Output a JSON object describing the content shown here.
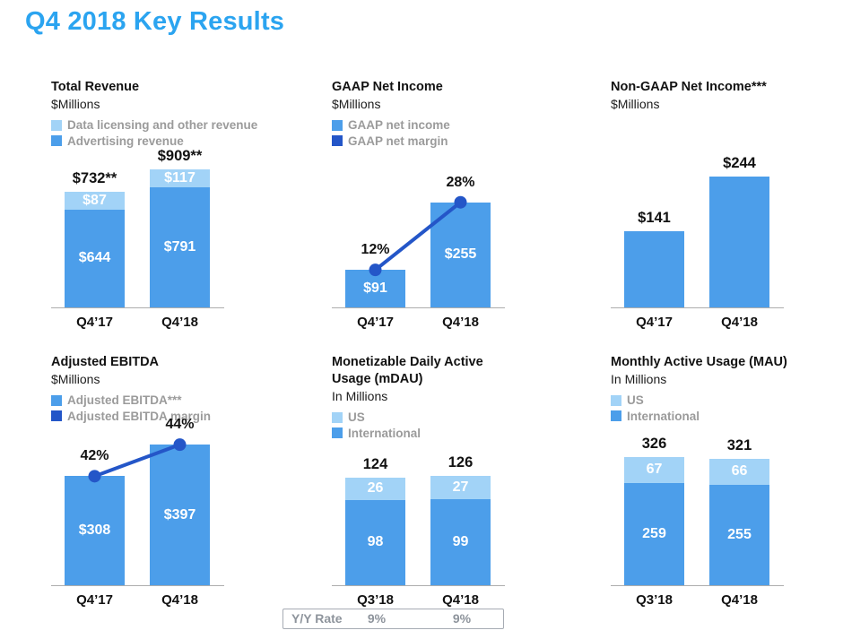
{
  "page_title": "Q4 2018 Key Results",
  "colors": {
    "title_blue": "#2BA4F0",
    "light_blue": "#A2D3F7",
    "medium_blue": "#4C9EEA",
    "dark_blue": "#2456C8",
    "legend_text_gray": "#9B9B9B",
    "axis_gray": "#ADADAD"
  },
  "chart_data": [
    {
      "type": "bar",
      "stacked": true,
      "title": "Total Revenue",
      "subtitle": "$Millions",
      "categories": [
        "Q4’17",
        "Q4’18"
      ],
      "legend_items": [
        {
          "label": "Data licensing and other revenue",
          "color": "light_blue"
        },
        {
          "label": "Advertising revenue",
          "color": "medium_blue"
        }
      ],
      "series": [
        {
          "name": "Data licensing and other revenue",
          "color": "light_blue",
          "values": [
            87,
            117
          ],
          "value_labels": [
            "$87",
            "$117"
          ]
        },
        {
          "name": "Advertising revenue",
          "color": "medium_blue",
          "values": [
            644,
            791
          ],
          "value_labels": [
            "$644",
            "$791"
          ]
        }
      ],
      "totals": [
        "$732**",
        "$909**"
      ],
      "ylim": [
        0,
        960
      ]
    },
    {
      "type": "bar-line",
      "title": "GAAP Net Income",
      "subtitle": "$Millions",
      "categories": [
        "Q4’17",
        "Q4’18"
      ],
      "legend_items": [
        {
          "label": "GAAP net income",
          "color": "medium_blue"
        },
        {
          "label": "GAAP net margin",
          "color": "dark_blue"
        }
      ],
      "series": [
        {
          "name": "GAAP net income",
          "color": "medium_blue",
          "values": [
            91,
            255
          ],
          "value_labels": [
            "$91",
            "$255"
          ]
        }
      ],
      "line": {
        "name": "GAAP net margin",
        "color": "dark_blue",
        "labels": [
          "12%",
          "28%"
        ]
      },
      "ylim": [
        0,
        290
      ]
    },
    {
      "type": "bar",
      "stacked": false,
      "title": "Non-GAAP Net Income***",
      "subtitle": "$Millions",
      "categories": [
        "Q4’17",
        "Q4’18"
      ],
      "series": [
        {
          "color": "medium_blue",
          "values": [
            141,
            244
          ]
        }
      ],
      "totals": [
        "$141",
        "$244"
      ],
      "ylim": [
        0,
        260
      ]
    },
    {
      "type": "bar-line",
      "title": "Adjusted EBITDA",
      "subtitle": "$Millions",
      "categories": [
        "Q4’17",
        "Q4’18"
      ],
      "legend_items": [
        {
          "label": "Adjusted EBITDA***",
          "color": "medium_blue"
        },
        {
          "label": "Adjusted EBITDA margin",
          "color": "dark_blue"
        }
      ],
      "series": [
        {
          "name": "Adjusted EBITDA***",
          "color": "medium_blue",
          "values": [
            308,
            397
          ],
          "value_labels": [
            "$308",
            "$397"
          ]
        }
      ],
      "line": {
        "name": "Adjusted EBITDA margin",
        "color": "dark_blue",
        "labels": [
          "42%",
          "44%"
        ]
      },
      "ylim": [
        0,
        420
      ]
    },
    {
      "type": "bar",
      "stacked": true,
      "title": "Monetizable Daily Active Usage (mDAU)",
      "subtitle": "In Millions",
      "categories": [
        "Q3’18",
        "Q4’18"
      ],
      "legend_items": [
        {
          "label": "US",
          "color": "light_blue"
        },
        {
          "label": "International",
          "color": "medium_blue"
        }
      ],
      "series": [
        {
          "name": "US",
          "color": "light_blue",
          "values": [
            26,
            27
          ],
          "value_labels": [
            "26",
            "27"
          ]
        },
        {
          "name": "International",
          "color": "medium_blue",
          "values": [
            98,
            99
          ],
          "value_labels": [
            "98",
            "99"
          ]
        }
      ],
      "totals": [
        "124",
        "126"
      ],
      "ylim": [
        0,
        130
      ]
    },
    {
      "type": "bar",
      "stacked": true,
      "title": "Monthly Active Usage (MAU)",
      "subtitle": "In Millions",
      "categories": [
        "Q3’18",
        "Q4’18"
      ],
      "legend_items": [
        {
          "label": "US",
          "color": "light_blue"
        },
        {
          "label": "International",
          "color": "medium_blue"
        }
      ],
      "series": [
        {
          "name": "US",
          "color": "light_blue",
          "values": [
            67,
            66
          ],
          "value_labels": [
            "67",
            "66"
          ]
        },
        {
          "name": "International",
          "color": "medium_blue",
          "values": [
            259,
            255
          ],
          "value_labels": [
            "259",
            "255"
          ]
        }
      ],
      "totals": [
        "326",
        "321"
      ],
      "ylim": [
        0,
        330
      ]
    }
  ],
  "yy_rate": {
    "label": "Y/Y Rate",
    "values": [
      "9%",
      "9%"
    ]
  }
}
